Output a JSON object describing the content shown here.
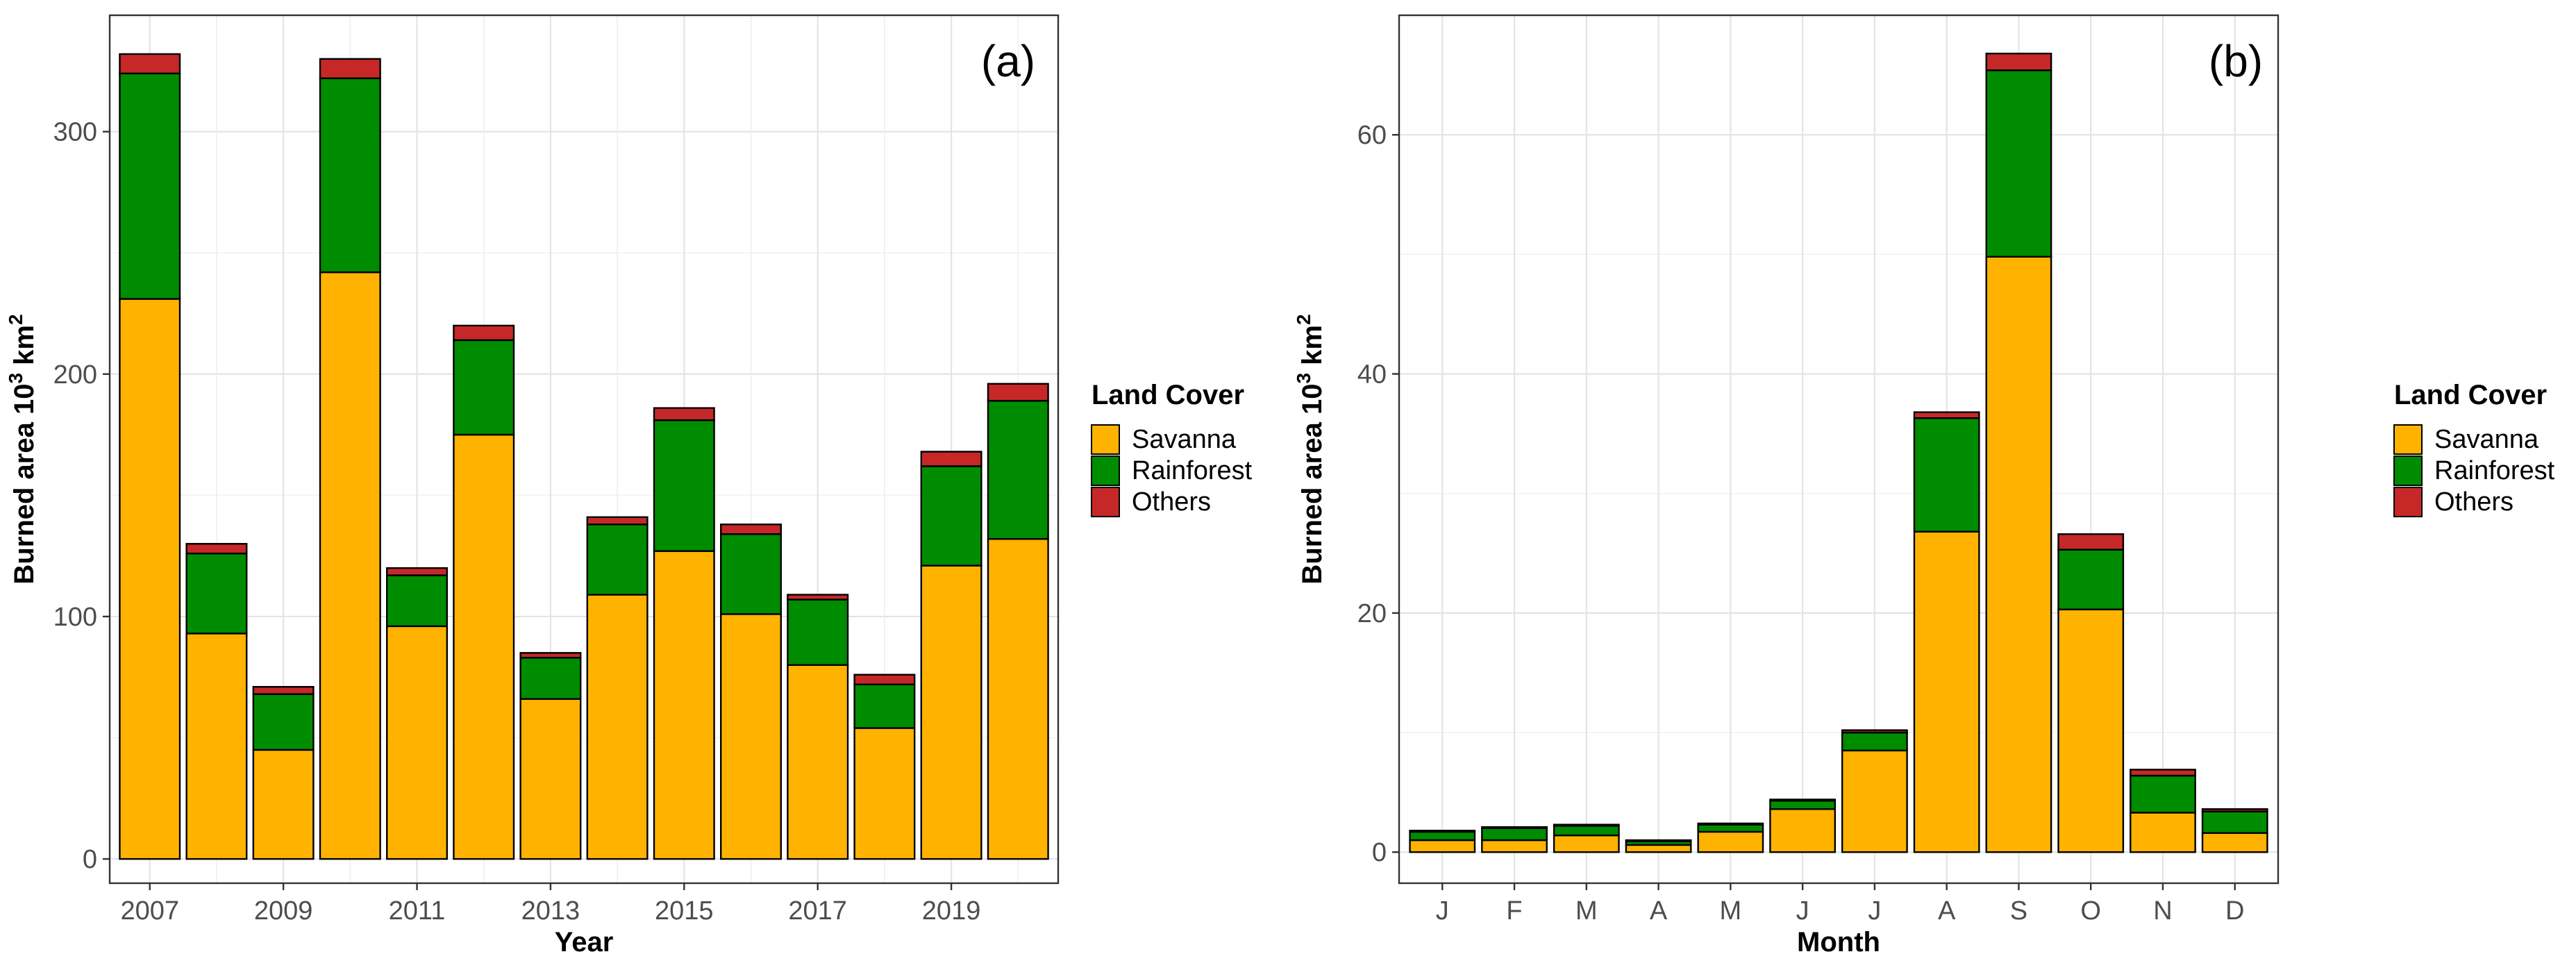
{
  "colors": {
    "savanna": "#FFB300",
    "rainforest": "#008C00",
    "others": "#C62828"
  },
  "chart_data": [
    {
      "type": "bar",
      "stacked": true,
      "panel_label": "(a)",
      "xlabel": "Year",
      "ylabel": "Burned area 10",
      "ylabel_sup": "3",
      "ylabel_unit": " km",
      "ylabel_unit_sup": "2",
      "categories": [
        "2007",
        "2008",
        "2009",
        "2010",
        "2011",
        "2012",
        "2013",
        "2014",
        "2015",
        "2016",
        "2017",
        "2018",
        "2019",
        "2020"
      ],
      "x_tick_labels": [
        "2007",
        "2009",
        "2011",
        "2013",
        "2015",
        "2017",
        "2019"
      ],
      "y_ticks": [
        0,
        100,
        200,
        300
      ],
      "ylim": [
        -10,
        348
      ],
      "grid": true,
      "legend": {
        "title": "Land Cover",
        "position": "right",
        "entries": [
          "Savanna",
          "Rainforest",
          "Others"
        ]
      },
      "series": [
        {
          "name": "Savanna",
          "values": [
            231,
            93,
            45,
            242,
            96,
            175,
            66,
            109,
            127,
            101,
            80,
            54,
            121,
            132
          ]
        },
        {
          "name": "Rainforest",
          "values": [
            93,
            33,
            23,
            80,
            21,
            39,
            17,
            29,
            54,
            33,
            27,
            18,
            41,
            57
          ]
        },
        {
          "name": "Others",
          "values": [
            8,
            4,
            3,
            8,
            3,
            6,
            2,
            3,
            5,
            4,
            2,
            4,
            6,
            7
          ]
        }
      ]
    },
    {
      "type": "bar",
      "stacked": true,
      "panel_label": "(b)",
      "xlabel": "Month",
      "ylabel": "Burned area 10",
      "ylabel_sup": "3",
      "ylabel_unit": " km",
      "ylabel_unit_sup": "2",
      "categories": [
        "J",
        "F",
        "M",
        "A",
        "M",
        "J",
        "J",
        "A",
        "S",
        "O",
        "N",
        "D"
      ],
      "x_tick_labels": [
        "J",
        "F",
        "M",
        "A",
        "M",
        "J",
        "J",
        "A",
        "S",
        "O",
        "N",
        "D"
      ],
      "y_ticks": [
        0,
        20,
        40,
        60
      ],
      "ylim": [
        -2.6,
        70
      ],
      "grid": true,
      "legend": {
        "title": "Land Cover",
        "position": "right",
        "entries": [
          "Savanna",
          "Rainforest",
          "Others"
        ]
      },
      "series": [
        {
          "name": "Savanna",
          "values": [
            1.0,
            1.0,
            1.4,
            0.6,
            1.7,
            3.6,
            8.5,
            26.8,
            49.8,
            20.3,
            3.3,
            1.6
          ]
        },
        {
          "name": "Rainforest",
          "values": [
            0.7,
            1.0,
            0.8,
            0.3,
            0.6,
            0.7,
            1.5,
            9.5,
            15.6,
            5.0,
            3.1,
            1.8
          ]
        },
        {
          "name": "Others",
          "values": [
            0.1,
            0.1,
            0.1,
            0.1,
            0.1,
            0.1,
            0.2,
            0.5,
            1.4,
            1.3,
            0.5,
            0.2
          ]
        }
      ]
    }
  ]
}
